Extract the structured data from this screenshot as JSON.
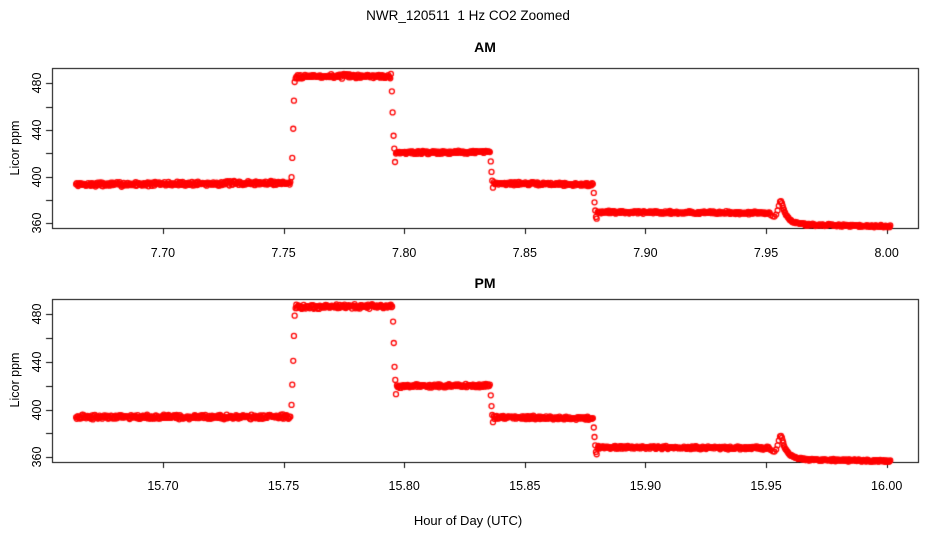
{
  "figure": {
    "title": "NWR_120511  1 Hz CO2 Zoomed",
    "xlabel": "Hour of Day (UTC)",
    "background": "#ffffff",
    "point_color": "#ff0000",
    "axis_color": "#000000"
  },
  "chart_data": [
    {
      "type": "scatter",
      "title": "AM",
      "ylabel": "Licor ppm",
      "marker": "open-circle",
      "color": "#ff0000",
      "grid": false,
      "legend": "none",
      "xlim": [
        7.654,
        8.013
      ],
      "ylim": [
        356,
        493
      ],
      "xticks": [
        7.7,
        7.75,
        7.8,
        7.85,
        7.9,
        7.95,
        8.0
      ],
      "xtick_labels": [
        "7.70",
        "7.75",
        "7.80",
        "7.85",
        "7.90",
        "7.95",
        "8.00"
      ],
      "yticks": [
        360,
        380,
        400,
        420,
        440,
        460,
        480
      ],
      "ytick_labeled_values": [
        360,
        400,
        440,
        480
      ],
      "ytick_labels": [
        "360",
        "400",
        "440",
        "480"
      ],
      "sample_interval_hours": 0.00027778,
      "seed": 7,
      "segments": [
        {
          "t0": 7.664,
          "t1": 7.7528,
          "v0": 393.2,
          "v1": 394.6,
          "noise": 2.3
        },
        {
          "pts": [
            [
              7.7533,
              399.5
            ],
            [
              7.7536,
              416
            ],
            [
              7.754,
              441
            ],
            [
              7.7543,
              465
            ],
            [
              7.7546,
              481
            ]
          ]
        },
        {
          "t0": 7.755,
          "t1": 7.7945,
          "v0": 485.8,
          "v1": 486.2,
          "noise": 2.2
        },
        {
          "pts": [
            [
              7.7949,
              473
            ],
            [
              7.7952,
              455
            ],
            [
              7.7956,
              435
            ],
            [
              7.7959,
              424
            ],
            [
              7.7962,
              412.5
            ]
          ]
        },
        {
          "t0": 7.7966,
          "t1": 7.8355,
          "v0": 420.6,
          "v1": 421.1,
          "noise": 1.7
        },
        {
          "pts": [
            [
              7.8359,
              413
            ],
            [
              7.8362,
              404
            ],
            [
              7.8365,
              396.5
            ],
            [
              7.8368,
              390.5
            ]
          ]
        },
        {
          "t0": 7.8372,
          "t1": 7.8782,
          "v0": 394.3,
          "v1": 393.2,
          "noise": 1.7
        },
        {
          "pts": [
            [
              7.8786,
              386
            ],
            [
              7.8789,
              378
            ],
            [
              7.8792,
              371
            ],
            [
              7.8795,
              365.5
            ],
            [
              7.8798,
              364
            ]
          ]
        },
        {
          "t0": 7.8802,
          "t1": 7.9515,
          "v0": 369.7,
          "v1": 368.8,
          "noise": 1.5
        },
        {
          "pts": [
            [
              7.952,
              367
            ],
            [
              7.9528,
              366
            ],
            [
              7.9535,
              365.8
            ],
            [
              7.9542,
              367.5
            ],
            [
              7.9548,
              371
            ],
            [
              7.9553,
              375
            ],
            [
              7.9558,
              378.5
            ],
            [
              7.9562,
              379
            ]
          ]
        },
        {
          "t0": 7.9566,
          "t1": 7.966,
          "v0": 377.0,
          "v1": 359.5,
          "noise": 0.8,
          "ease": "exp"
        },
        {
          "t0": 7.966,
          "t1": 8.0015,
          "v0": 358.8,
          "v1": 357.4,
          "noise": 1.2
        }
      ]
    },
    {
      "type": "scatter",
      "title": "PM",
      "ylabel": "Licor ppm",
      "marker": "open-circle",
      "color": "#ff0000",
      "grid": false,
      "legend": "none",
      "xlim": [
        15.654,
        16.013
      ],
      "ylim": [
        356,
        493
      ],
      "xticks": [
        15.7,
        15.75,
        15.8,
        15.85,
        15.9,
        15.95,
        16.0
      ],
      "xtick_labels": [
        "15.70",
        "15.75",
        "15.80",
        "15.85",
        "15.90",
        "15.95",
        "16.00"
      ],
      "yticks": [
        360,
        380,
        400,
        420,
        440,
        460,
        480
      ],
      "ytick_labeled_values": [
        360,
        400,
        440,
        480
      ],
      "ytick_labels": [
        "360",
        "400",
        "440",
        "480"
      ],
      "sample_interval_hours": 0.00027778,
      "seed": 15,
      "segments": [
        {
          "t0": 15.664,
          "t1": 15.7528,
          "v0": 393.8,
          "v1": 393.9,
          "noise": 2.2
        },
        {
          "pts": [
            [
              15.7533,
              404
            ],
            [
              15.7536,
              421
            ],
            [
              15.754,
              441
            ],
            [
              15.7543,
              462
            ],
            [
              15.7546,
              479
            ]
          ]
        },
        {
          "t0": 15.755,
          "t1": 15.795,
          "v0": 486.4,
          "v1": 486.9,
          "noise": 2.2
        },
        {
          "pts": [
            [
              15.7954,
              474
            ],
            [
              15.7957,
              456
            ],
            [
              15.796,
              436
            ],
            [
              15.7963,
              425
            ],
            [
              15.7966,
              413
            ]
          ]
        },
        {
          "t0": 15.797,
          "t1": 15.8355,
          "v0": 419.9,
          "v1": 420.3,
          "noise": 1.7
        },
        {
          "pts": [
            [
              15.8359,
              412
            ],
            [
              15.8362,
              403
            ],
            [
              15.8365,
              395.5
            ],
            [
              15.8368,
              389.5
            ]
          ]
        },
        {
          "t0": 15.8372,
          "t1": 15.8782,
          "v0": 393.6,
          "v1": 392.8,
          "noise": 1.7
        },
        {
          "pts": [
            [
              15.8786,
              385
            ],
            [
              15.8789,
              377
            ],
            [
              15.8792,
              370
            ],
            [
              15.8795,
              364.5
            ],
            [
              15.8798,
              362.5
            ]
          ]
        },
        {
          "t0": 15.8802,
          "t1": 15.9515,
          "v0": 368.4,
          "v1": 367.7,
          "noise": 1.5
        },
        {
          "pts": [
            [
              15.952,
              366
            ],
            [
              15.9528,
              365
            ],
            [
              15.9535,
              364.8
            ],
            [
              15.9542,
              366.5
            ],
            [
              15.9548,
              370
            ],
            [
              15.9553,
              374
            ],
            [
              15.9558,
              377.5
            ],
            [
              15.9562,
              378
            ]
          ]
        },
        {
          "t0": 15.9566,
          "t1": 15.966,
          "v0": 376.0,
          "v1": 358.5,
          "noise": 0.8,
          "ease": "exp"
        },
        {
          "t0": 15.966,
          "t1": 16.0015,
          "v0": 357.8,
          "v1": 356.9,
          "noise": 1.1
        }
      ]
    }
  ]
}
